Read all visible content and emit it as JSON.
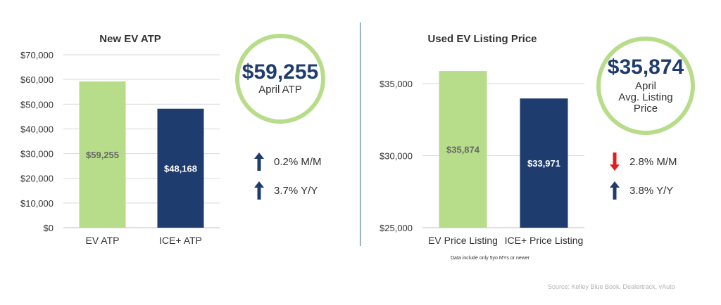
{
  "chart_data": [
    {
      "type": "bar",
      "title": "New EV ATP",
      "categories": [
        "EV ATP",
        "ICE+ ATP"
      ],
      "values": [
        59255,
        48168
      ],
      "data_labels": [
        "$59,255",
        "$48,168"
      ],
      "ylim": [
        0,
        70000
      ],
      "yticks": [
        0,
        10000,
        20000,
        30000,
        40000,
        50000,
        60000,
        70000
      ],
      "ytick_labels": [
        "$0",
        "$10,000",
        "$20,000",
        "$30,000",
        "$40,000",
        "$50,000",
        "$60,000",
        "$70,000"
      ],
      "grid": true,
      "colors": [
        "#b7dd8b",
        "#1e3c6e"
      ],
      "label_colors": [
        "#666666",
        "#ffffff"
      ]
    },
    {
      "type": "bar",
      "title": "Used EV Listing Price",
      "categories": [
        "EV Price Listing",
        "ICE+ Price Listing"
      ],
      "values": [
        35874,
        33971
      ],
      "data_labels": [
        "$35,874",
        "$33,971"
      ],
      "ylim": [
        25000,
        37000
      ],
      "yticks": [
        25000,
        30000,
        35000
      ],
      "ytick_labels": [
        "$25,000",
        "$30,000",
        "$35,000"
      ],
      "grid": true,
      "colors": [
        "#b7dd8b",
        "#1e3c6e"
      ],
      "label_colors": [
        "#666666",
        "#ffffff"
      ]
    }
  ],
  "left_panel": {
    "highlight_value": "$59,255",
    "highlight_label": "April ATP",
    "changes": [
      {
        "text": "0.2% M/M",
        "direction": "up",
        "color": "#1e3c6e"
      },
      {
        "text": "3.7% Y/Y",
        "direction": "up",
        "color": "#1e3c6e"
      }
    ]
  },
  "right_panel": {
    "highlight_value": "$35,874",
    "highlight_label_lines": [
      "April",
      "Avg. Listing",
      "Price"
    ],
    "changes": [
      {
        "text": "2.8% M/M",
        "direction": "down",
        "color": "#e02020"
      },
      {
        "text": "3.8% Y/Y",
        "direction": "up",
        "color": "#1e3c6e"
      }
    ]
  },
  "footnote": "Data include only 5yo MYs or newer",
  "source": "Source: Kelley Blue Book, Dealertrack, vAuto",
  "colors": {
    "green": "#b7dd8b",
    "navy": "#1e3c6e",
    "divider": "#2d6f9f"
  }
}
